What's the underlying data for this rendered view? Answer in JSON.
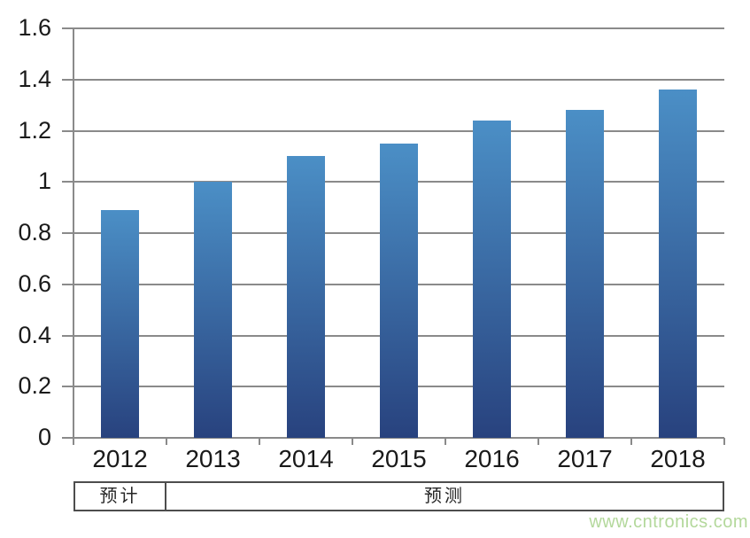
{
  "watermark": {
    "text": "www.cntronics.com"
  },
  "footer_table": {
    "cells": [
      {
        "label": "预计"
      },
      {
        "label": "预测"
      }
    ]
  },
  "chart_data": {
    "type": "bar",
    "title": "",
    "xlabel": "",
    "ylabel": "",
    "categories": [
      "2012",
      "2013",
      "2014",
      "2015",
      "2016",
      "2017",
      "2018"
    ],
    "values": [
      0.89,
      1.0,
      1.1,
      1.15,
      1.24,
      1.28,
      1.36
    ],
    "ylim": [
      0,
      1.6
    ],
    "yticks": [
      {
        "value": 1.6,
        "label": "1.6"
      },
      {
        "value": 1.4,
        "label": "1.4"
      },
      {
        "value": 1.2,
        "label": "1.2"
      },
      {
        "value": 1.0,
        "label": "1"
      },
      {
        "value": 0.8,
        "label": "0.8"
      },
      {
        "value": 0.6,
        "label": "0.6"
      },
      {
        "value": 0.4,
        "label": "0.4"
      },
      {
        "value": 0.2,
        "label": "0.2"
      },
      {
        "value": 0.0,
        "label": "0"
      }
    ],
    "grid": true,
    "legend_position": "none",
    "colors": {
      "bar_gradient_top": "#4b8fc6",
      "bar_gradient_bottom": "#28427e",
      "gridline": "#8a8a8a",
      "axis": "#8a8a8a",
      "tick_label": "#1a1a1a",
      "table_border": "#4d4d4d",
      "table_text": "#262626",
      "watermark": "#b3d89b"
    }
  }
}
